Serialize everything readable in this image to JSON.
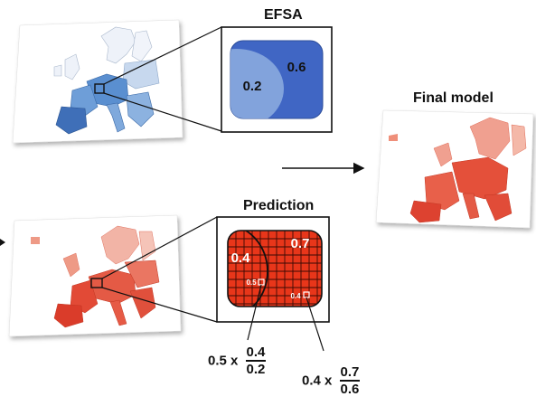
{
  "titles": {
    "efsa": "EFSA",
    "final_model": "Final model",
    "prediction": "Prediction"
  },
  "efsa_zoom": {
    "inner_value": "0.2",
    "outer_value": "0.6"
  },
  "prediction_zoom": {
    "left_value": "0.4",
    "right_value": "0.7",
    "sample_left": "0.5",
    "sample_right": "0.4"
  },
  "formulas": {
    "left": {
      "factor": "0.5 x",
      "numerator": "0.4",
      "denominator": "0.2"
    },
    "right": {
      "factor": "0.4 x",
      "numerator": "0.7",
      "denominator": "0.6"
    }
  },
  "colors": {
    "efsa_blue": "#3f67c8",
    "efsa_light": "#c9d6ef",
    "prediction_red": "#e8361a",
    "grid_dark": "#3a0a04",
    "map_blue": "#5b8fcd",
    "map_red": "#e0483a"
  }
}
